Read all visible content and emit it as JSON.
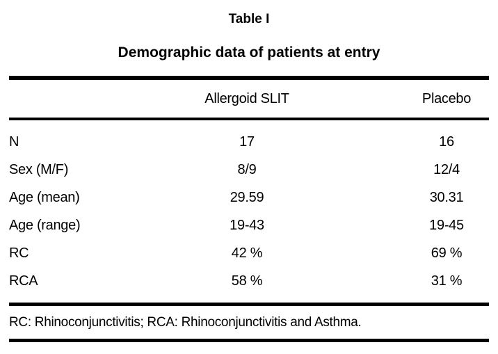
{
  "figure": {
    "title": "Table I",
    "subtitle": "Demographic data of patients at entry",
    "footnote": "RC: Rhinoconjunctivitis; RCA: Rhinoconjunctivitis and Asthma."
  },
  "colors": {
    "text": "#000000",
    "rule": "#000000",
    "background": "#ffffff"
  },
  "chart_data": {
    "type": "table",
    "title": "Table I — Demographic data of patients at entry",
    "columns": [
      "",
      "Allergoid SLIT",
      "Placebo"
    ],
    "rows": [
      {
        "label": "N",
        "allergoid_slit": "17",
        "placebo": "16"
      },
      {
        "label": "Sex (M/F)",
        "allergoid_slit": "8/9",
        "placebo": "12/4"
      },
      {
        "label": "Age (mean)",
        "allergoid_slit": "29.59",
        "placebo": "30.31"
      },
      {
        "label": "Age (range)",
        "allergoid_slit": "19-43",
        "placebo": "19-45"
      },
      {
        "label": "RC",
        "allergoid_slit": "42 %",
        "placebo": "69 %"
      },
      {
        "label": "RCA",
        "allergoid_slit": "58 %",
        "placebo": "31 %"
      }
    ],
    "footnote": "RC: Rhinoconjunctivitis; RCA: Rhinoconjunctivitis and Asthma."
  }
}
